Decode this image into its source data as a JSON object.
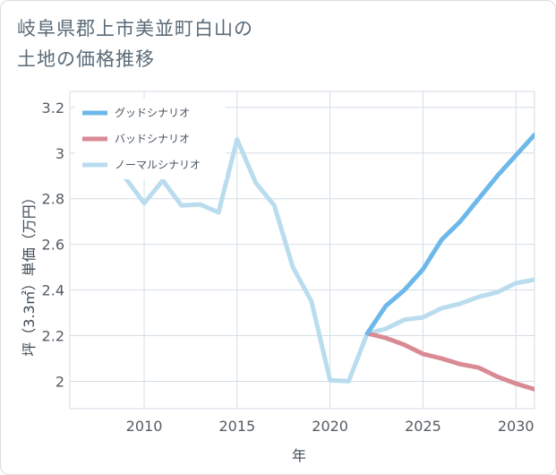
{
  "title_lines": [
    "岐阜県郡上市美並町白山の",
    "土地の価格推移"
  ],
  "chart_data": {
    "type": "line",
    "title": "岐阜県郡上市美並町白山の土地の価格推移",
    "xlabel": "年",
    "ylabel": "坪（3.3㎡）単価（万円）",
    "xlim": [
      2006,
      2031
    ],
    "ylim": [
      1.88,
      3.27
    ],
    "x_ticks": [
      2010,
      2015,
      2020,
      2025,
      2030
    ],
    "y_ticks": [
      2,
      2.2,
      2.4,
      2.6,
      2.8,
      3,
      3.2
    ],
    "grid": true,
    "legend_position": "top-left",
    "series": [
      {
        "name": "グッドシナリオ",
        "color": "#6db8ea",
        "x": [
          2022,
          2023,
          2024,
          2025,
          2026,
          2027,
          2028,
          2029,
          2030,
          2031
        ],
        "y": [
          2.21,
          2.33,
          2.4,
          2.49,
          2.62,
          2.7,
          2.8,
          2.9,
          2.99,
          3.08
        ]
      },
      {
        "name": "バッドシナリオ",
        "color": "#d98a94",
        "x": [
          2022,
          2023,
          2024,
          2025,
          2026,
          2027,
          2028,
          2029,
          2030,
          2031
        ],
        "y": [
          2.21,
          2.19,
          2.16,
          2.12,
          2.1,
          2.075,
          2.06,
          2.02,
          1.99,
          1.965
        ]
      },
      {
        "name": "ノーマルシナリオ",
        "color": "#b9dcee",
        "x": [
          2008,
          2009,
          2010,
          2011,
          2012,
          2013,
          2014,
          2015,
          2016,
          2017,
          2018,
          2019,
          2020,
          2021,
          2022,
          2023,
          2024,
          2025,
          2026,
          2027,
          2028,
          2029,
          2030,
          2031
        ],
        "y": [
          2.92,
          2.89,
          2.78,
          2.88,
          2.77,
          2.775,
          2.74,
          3.06,
          2.87,
          2.77,
          2.5,
          2.35,
          2.005,
          2.0,
          2.21,
          2.23,
          2.27,
          2.28,
          2.32,
          2.34,
          2.37,
          2.39,
          2.43,
          2.445
        ]
      }
    ]
  }
}
